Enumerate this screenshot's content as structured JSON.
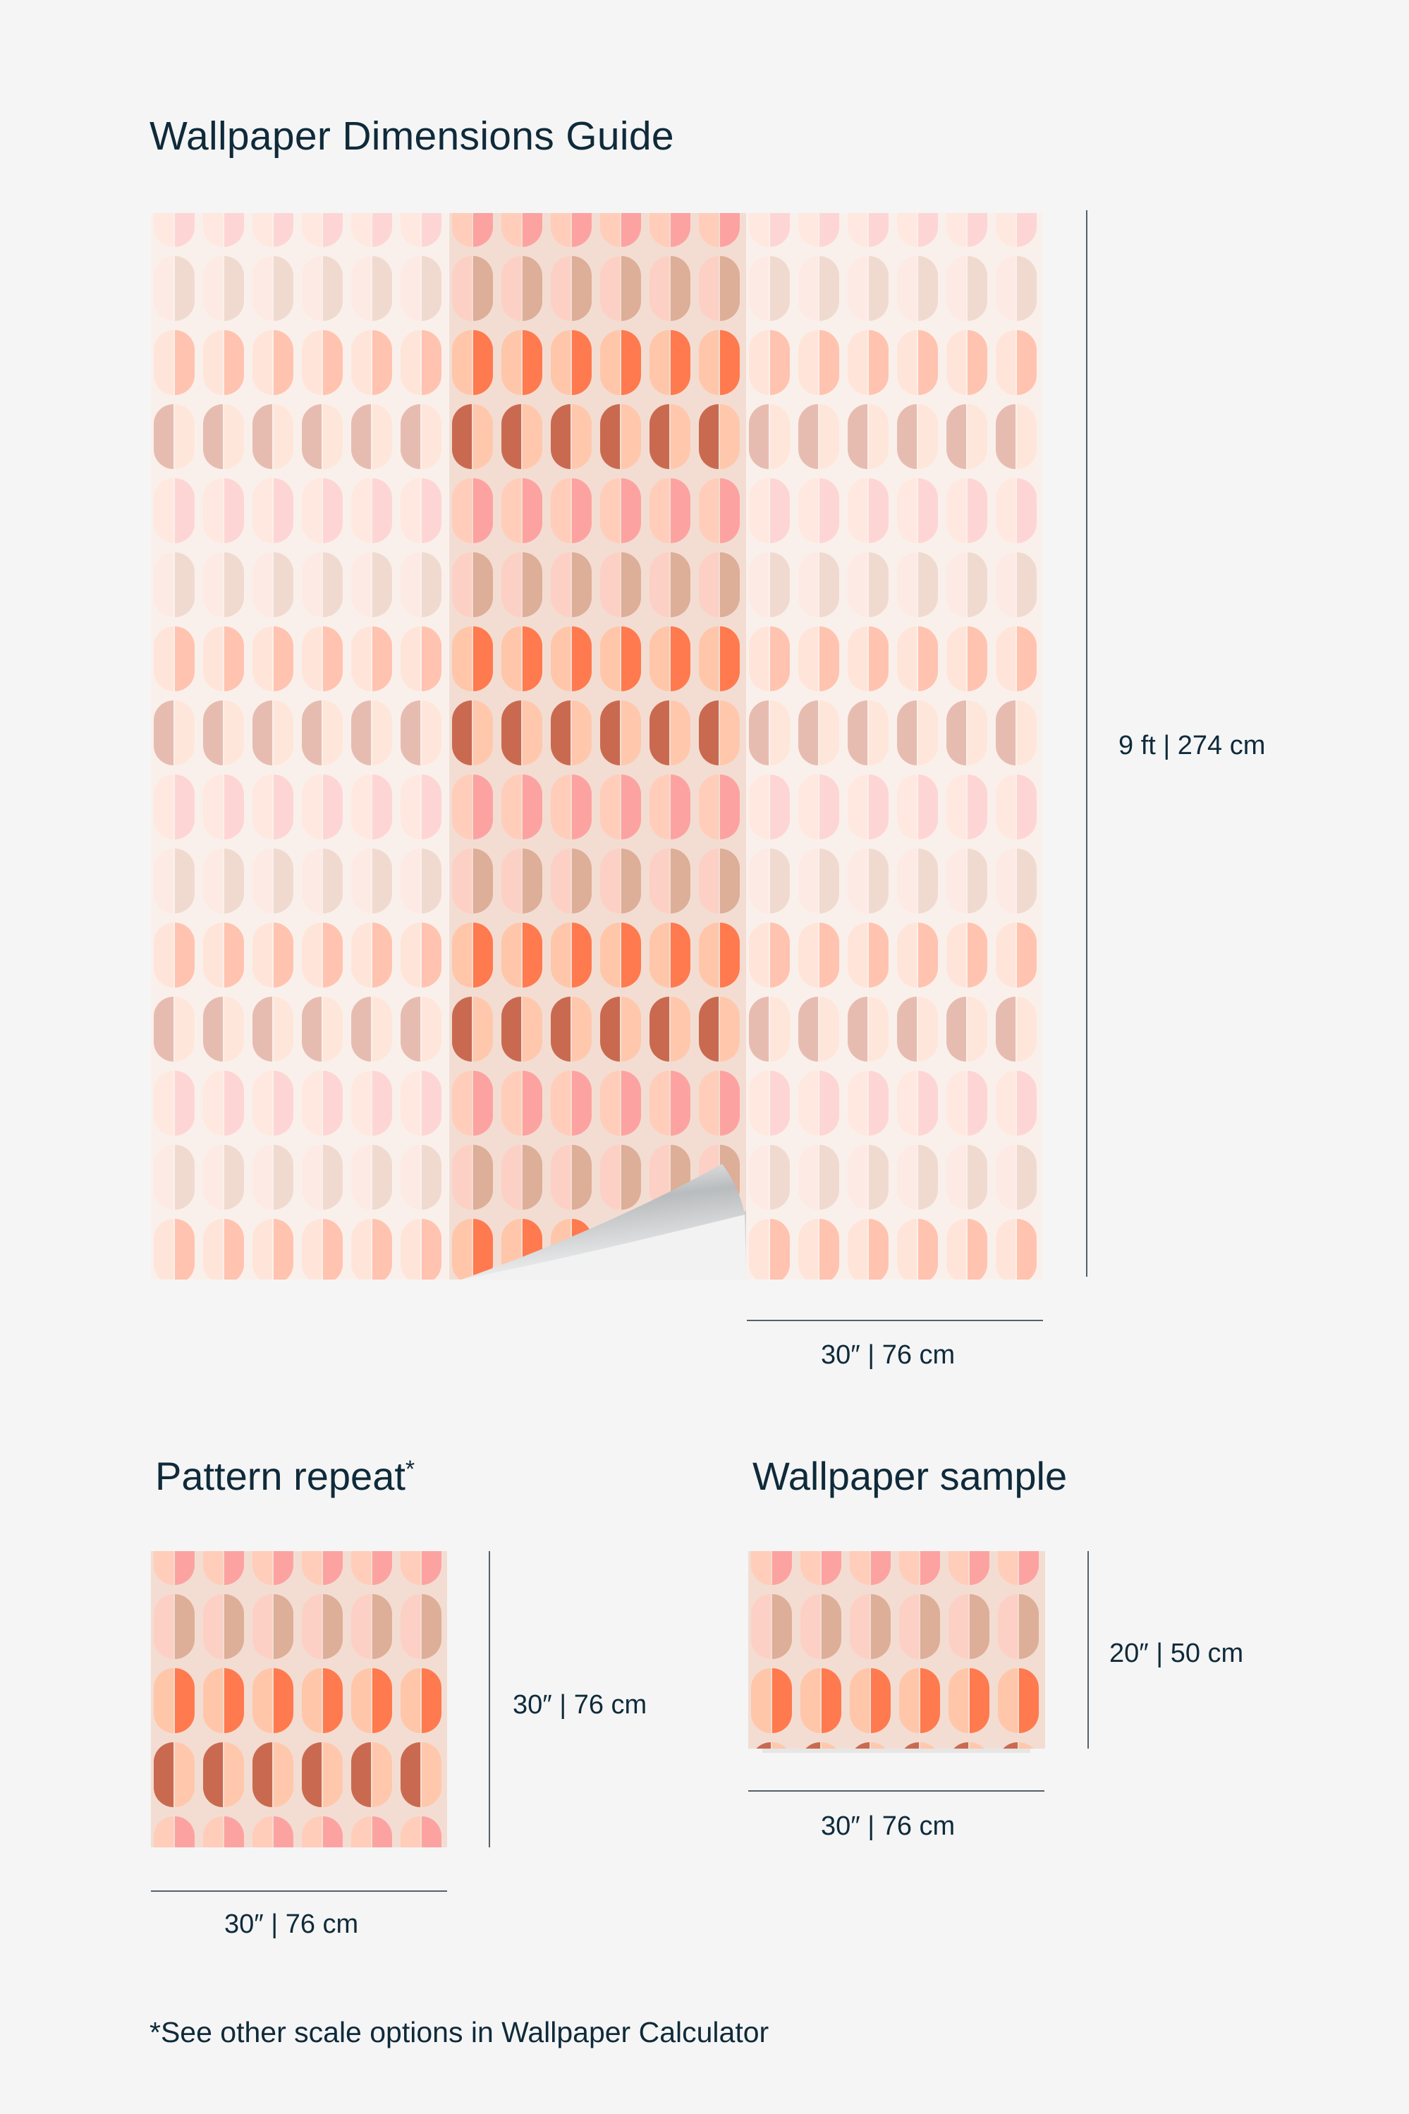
{
  "title": "Wallpaper Dimensions Guide",
  "main_panel": {
    "height_label": "9 ft | 274 cm",
    "width_label": "30″ | 76 cm",
    "strips": 3
  },
  "pattern_repeat": {
    "title": "Pattern repeat",
    "title_mark": "*",
    "height_label": "30″ | 76 cm",
    "width_label": "30″ | 76 cm"
  },
  "wallpaper_sample": {
    "title": "Wallpaper sample",
    "height_label": "20″ | 50 cm",
    "width_label": "30″ | 76 cm"
  },
  "footer_note": "*See other scale options in Wallpaper Calculator",
  "colors": {
    "text": "#0f2a3a",
    "background": "#f5f5f5",
    "pattern_ground": "#f3ddd2",
    "pink": "#fca3a2",
    "pink_light": "#ffcdb9",
    "tan": "#ddae98",
    "tan_light": "#fdd0c5",
    "orange": "#ff7a4e",
    "orange_light": "#ffc6aa",
    "brick": "#c96a50",
    "brick_light": "#ffc8ad"
  }
}
